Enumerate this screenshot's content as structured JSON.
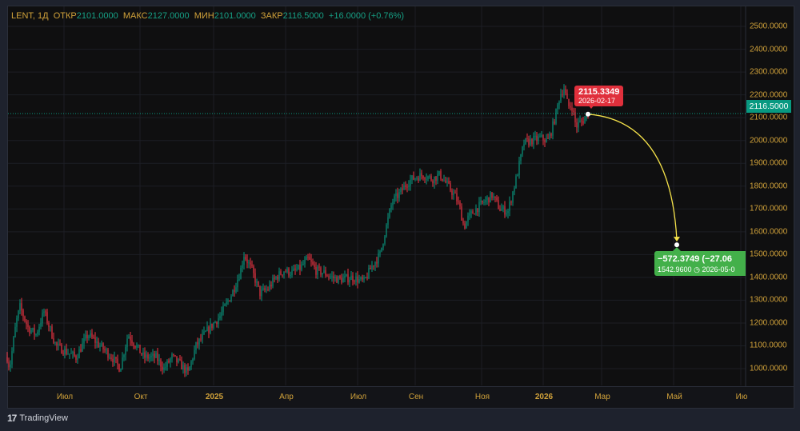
{
  "legend": {
    "symbol": "LENT, 1Д",
    "open_label": "ОТКР",
    "open": "2101.0000",
    "high_label": "МАКС",
    "high": "2127.0000",
    "low_label": "МИН",
    "low": "2101.0000",
    "close_label": "ЗАКР",
    "close": "2116.5000",
    "change": "+16.0000 (+0.76%)"
  },
  "last_price": "2116.5000",
  "tooltip_start": {
    "price": "2115.3349",
    "date": "2026-02-17"
  },
  "tooltip_end": {
    "change": "−572.3749 (−27.06",
    "price": "1542.9600",
    "date": "2026-05-0"
  },
  "brand": "TradingView",
  "colors": {
    "up": "#089981",
    "down": "#f23645",
    "projection": "#f5e24a",
    "axis_text": "#d1a23a"
  },
  "chart_data": {
    "type": "candlestick",
    "price_ticks": [
      "2500.0000",
      "2400.0000",
      "2300.0000",
      "2200.0000",
      "2100.0000",
      "2000.0000",
      "1900.0000",
      "1800.0000",
      "1700.0000",
      "1600.0000",
      "1500.0000",
      "1400.0000",
      "1300.0000",
      "1200.0000",
      "1100.0000",
      "1000.0000"
    ],
    "ylim": [
      1000,
      2500
    ],
    "time_ticks": [
      {
        "label": "Июл",
        "bold": false
      },
      {
        "label": "Окт",
        "bold": false
      },
      {
        "label": "2025",
        "bold": true
      },
      {
        "label": "Апр",
        "bold": false
      },
      {
        "label": "Июл",
        "bold": false
      },
      {
        "label": "Сен",
        "bold": false
      },
      {
        "label": "Ноя",
        "bold": false
      },
      {
        "label": "2026",
        "bold": true
      },
      {
        "label": "Мар",
        "bold": false
      },
      {
        "label": "Май",
        "bold": false
      },
      {
        "label": "Ию",
        "bold": false
      }
    ],
    "approx_path": [
      [
        0,
        1050
      ],
      [
        3,
        1000
      ],
      [
        11,
        1200
      ],
      [
        16,
        1270
      ],
      [
        26,
        1180
      ],
      [
        36,
        1150
      ],
      [
        46,
        1250
      ],
      [
        51,
        1200
      ],
      [
        61,
        1100
      ],
      [
        71,
        1080
      ],
      [
        86,
        1050
      ],
      [
        101,
        1150
      ],
      [
        116,
        1100
      ],
      [
        131,
        1050
      ],
      [
        141,
        1000
      ],
      [
        151,
        1150
      ],
      [
        161,
        1100
      ],
      [
        171,
        1050
      ],
      [
        186,
        1050
      ],
      [
        196,
        1000
      ],
      [
        206,
        1050
      ],
      [
        216,
        1020
      ],
      [
        226,
        980
      ],
      [
        236,
        1100
      ],
      [
        251,
        1170
      ],
      [
        266,
        1230
      ],
      [
        281,
        1330
      ],
      [
        291,
        1420
      ],
      [
        296,
        1500
      ],
      [
        306,
        1430
      ],
      [
        316,
        1330
      ],
      [
        326,
        1350
      ],
      [
        336,
        1400
      ],
      [
        346,
        1430
      ],
      [
        356,
        1420
      ],
      [
        366,
        1440
      ],
      [
        376,
        1480
      ],
      [
        386,
        1430
      ],
      [
        396,
        1420
      ],
      [
        406,
        1400
      ],
      [
        416,
        1390
      ],
      [
        431,
        1400
      ],
      [
        446,
        1380
      ],
      [
        456,
        1450
      ],
      [
        466,
        1500
      ],
      [
        471,
        1580
      ],
      [
        481,
        1730
      ],
      [
        491,
        1770
      ],
      [
        501,
        1820
      ],
      [
        511,
        1840
      ],
      [
        521,
        1850
      ],
      [
        531,
        1830
      ],
      [
        541,
        1850
      ],
      [
        551,
        1800
      ],
      [
        561,
        1750
      ],
      [
        566,
        1700
      ],
      [
        571,
        1620
      ],
      [
        576,
        1660
      ],
      [
        586,
        1700
      ],
      [
        596,
        1730
      ],
      [
        606,
        1760
      ],
      [
        616,
        1700
      ],
      [
        626,
        1690
      ],
      [
        636,
        1830
      ],
      [
        646,
        1990
      ],
      [
        656,
        2000
      ],
      [
        666,
        2010
      ],
      [
        676,
        2000
      ],
      [
        681,
        2050
      ],
      [
        686,
        2120
      ],
      [
        691,
        2200
      ],
      [
        696,
        2230
      ],
      [
        701,
        2150
      ],
      [
        706,
        2150
      ],
      [
        711,
        2060
      ],
      [
        716,
        2080
      ],
      [
        721,
        2090
      ],
      [
        726,
        2116
      ]
    ],
    "projection": {
      "from": 2115.3349,
      "to": 1542.96
    }
  }
}
